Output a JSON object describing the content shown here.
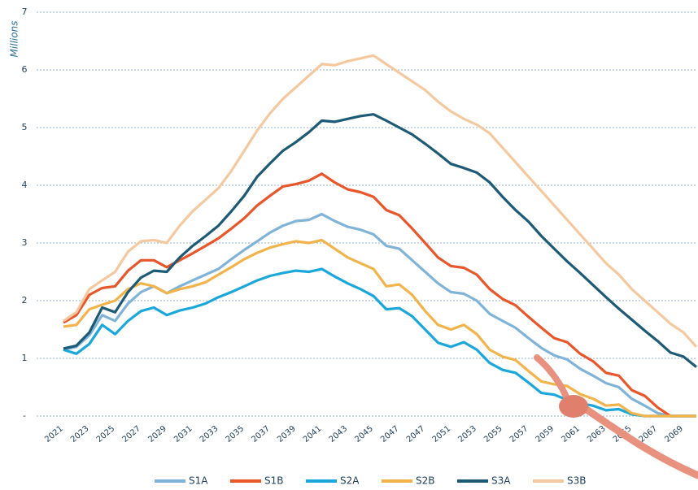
{
  "chart_data": {
    "type": "line",
    "ylabel": "Millions",
    "categories": [
      "2021",
      null,
      "2023",
      null,
      "2025",
      null,
      "2027",
      null,
      "2029",
      null,
      "2031",
      null,
      "2033",
      null,
      "2035",
      null,
      "2037",
      null,
      "2039",
      null,
      "2041",
      null,
      "2043",
      null,
      "2045",
      null,
      "2047",
      null,
      "2047",
      null,
      "2051",
      null,
      "2053",
      null,
      "2055",
      null,
      "2057",
      null,
      "2059",
      null,
      "2061",
      null,
      "2063",
      null,
      "2065",
      null,
      "2067",
      null,
      "2069",
      null
    ],
    "series": [
      {
        "name": "S1A",
        "color": "#7fb3d8",
        "values": [
          1.15,
          1.2,
          1.4,
          1.75,
          1.65,
          1.95,
          2.15,
          2.25,
          2.13,
          2.25,
          2.35,
          2.45,
          2.55,
          2.72,
          2.88,
          3.03,
          3.18,
          3.3,
          3.38,
          3.4,
          3.5,
          3.38,
          3.28,
          3.23,
          3.15,
          2.95,
          2.9,
          2.7,
          2.5,
          2.3,
          2.15,
          2.12,
          2.0,
          1.77,
          1.65,
          1.53,
          1.35,
          1.18,
          1.05,
          0.98,
          0.82,
          0.7,
          0.57,
          0.5,
          0.3,
          0.18,
          0.05,
          0,
          0,
          0
        ]
      },
      {
        "name": "S1B",
        "color": "#e8562a",
        "values": [
          1.62,
          1.75,
          2.1,
          2.22,
          2.25,
          2.52,
          2.7,
          2.7,
          2.58,
          2.7,
          2.82,
          2.95,
          3.08,
          3.25,
          3.43,
          3.65,
          3.82,
          3.98,
          4.02,
          4.08,
          4.2,
          4.05,
          3.93,
          3.88,
          3.8,
          3.57,
          3.48,
          3.25,
          3.0,
          2.75,
          2.6,
          2.57,
          2.45,
          2.2,
          2.03,
          1.92,
          1.72,
          1.53,
          1.35,
          1.28,
          1.08,
          0.95,
          0.75,
          0.7,
          0.45,
          0.35,
          0.15,
          0,
          0,
          0
        ]
      },
      {
        "name": "S2A",
        "color": "#1aa7dc",
        "values": [
          1.15,
          1.08,
          1.25,
          1.58,
          1.42,
          1.65,
          1.82,
          1.88,
          1.75,
          1.83,
          1.88,
          1.95,
          2.06,
          2.15,
          2.25,
          2.35,
          2.43,
          2.48,
          2.52,
          2.5,
          2.55,
          2.42,
          2.3,
          2.2,
          2.08,
          1.85,
          1.87,
          1.73,
          1.5,
          1.27,
          1.2,
          1.28,
          1.15,
          0.92,
          0.8,
          0.75,
          0.58,
          0.4,
          0.37,
          0.28,
          0.22,
          0.18,
          0.1,
          0.12,
          0.03,
          0,
          0,
          0,
          0,
          0
        ]
      },
      {
        "name": "S2B",
        "color": "#f2b44a",
        "values": [
          1.55,
          1.58,
          1.85,
          1.93,
          2.0,
          2.2,
          2.3,
          2.25,
          2.13,
          2.2,
          2.25,
          2.32,
          2.45,
          2.58,
          2.72,
          2.83,
          2.92,
          2.98,
          3.03,
          3.0,
          3.05,
          2.9,
          2.75,
          2.65,
          2.55,
          2.25,
          2.28,
          2.1,
          1.82,
          1.58,
          1.5,
          1.58,
          1.42,
          1.15,
          1.03,
          0.97,
          0.78,
          0.6,
          0.55,
          0.52,
          0.38,
          0.3,
          0.18,
          0.2,
          0.05,
          0,
          0,
          0,
          0,
          0
        ]
      },
      {
        "name": "S3A",
        "color": "#1d5a75",
        "values": [
          1.17,
          1.22,
          1.45,
          1.88,
          1.8,
          2.15,
          2.4,
          2.52,
          2.5,
          2.75,
          2.95,
          3.12,
          3.3,
          3.55,
          3.82,
          4.15,
          4.38,
          4.6,
          4.75,
          4.92,
          5.12,
          5.1,
          5.15,
          5.2,
          5.23,
          5.12,
          5.0,
          4.88,
          4.72,
          4.55,
          4.37,
          4.3,
          4.22,
          4.05,
          3.8,
          3.57,
          3.37,
          3.12,
          2.9,
          2.68,
          2.48,
          2.27,
          2.06,
          1.86,
          1.67,
          1.48,
          1.3,
          1.1,
          1.03,
          0.85
        ]
      },
      {
        "name": "S3B",
        "color": "#f5c9a0",
        "values": [
          1.65,
          1.8,
          2.2,
          2.35,
          2.5,
          2.85,
          3.03,
          3.05,
          3.0,
          3.3,
          3.55,
          3.75,
          3.95,
          4.25,
          4.6,
          4.95,
          5.25,
          5.5,
          5.7,
          5.9,
          6.1,
          6.08,
          6.15,
          6.2,
          6.25,
          6.1,
          5.95,
          5.8,
          5.65,
          5.45,
          5.28,
          5.15,
          5.05,
          4.9,
          4.65,
          4.4,
          4.15,
          3.9,
          3.65,
          3.4,
          3.15,
          2.9,
          2.65,
          2.45,
          2.2,
          2.0,
          1.8,
          1.6,
          1.45,
          1.2
        ]
      }
    ],
    "ylim": [
      0,
      7
    ],
    "yticks": [
      {
        "value": 0,
        "label": "-"
      },
      1,
      2,
      3,
      4,
      5,
      6,
      7
    ],
    "grid": true,
    "legend": "bottom"
  }
}
